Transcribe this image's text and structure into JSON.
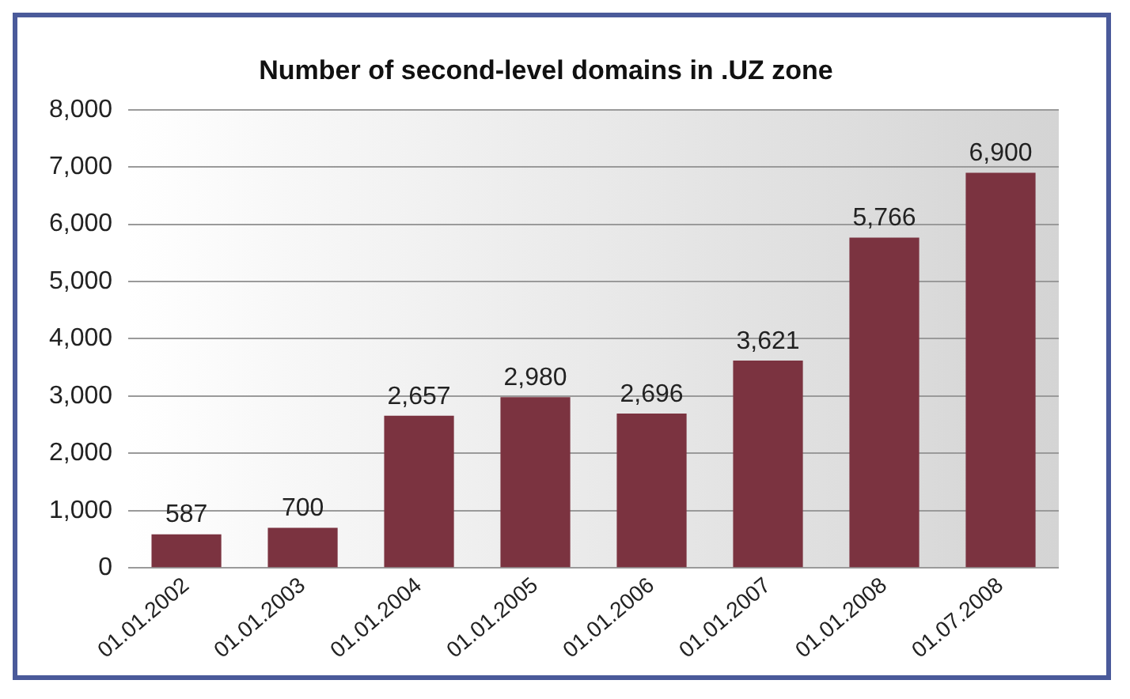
{
  "chart_data": {
    "type": "bar",
    "title": "Number of second-level domains in .UZ zone",
    "categories": [
      "01.01.2002",
      "01.01.2003",
      "01.01.2004",
      "01.01.2005",
      "01.01.2006",
      "01.01.2007",
      "01.01.2008",
      "01.07.2008"
    ],
    "values": [
      587,
      700,
      2657,
      2980,
      2696,
      3621,
      5766,
      6900
    ],
    "value_labels": [
      "587",
      "700",
      "2,657",
      "2,980",
      "2,696",
      "3,621",
      "5,766",
      "6,900"
    ],
    "color": "#7b3340",
    "ylim": [
      0,
      8000
    ],
    "yticks": [
      {
        "value": 0,
        "label": "0"
      },
      {
        "value": 1000,
        "label": "1,000"
      },
      {
        "value": 2000,
        "label": "2,000"
      },
      {
        "value": 3000,
        "label": "3,000"
      },
      {
        "value": 4000,
        "label": "4,000"
      },
      {
        "value": 5000,
        "label": "5,000"
      },
      {
        "value": 6000,
        "label": "6,000"
      },
      {
        "value": 7000,
        "label": "7,000"
      },
      {
        "value": 8000,
        "label": "8,000"
      }
    ],
    "grid": "y"
  }
}
